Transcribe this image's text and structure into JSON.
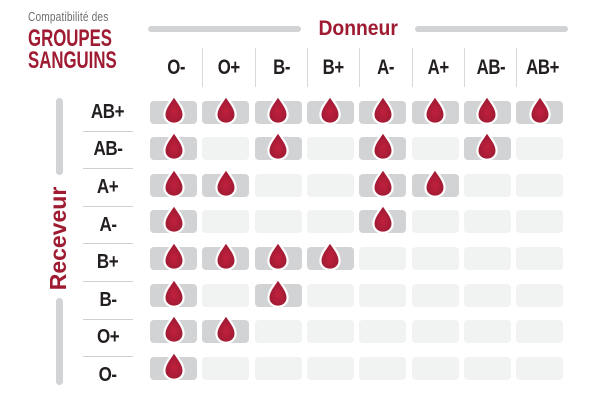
{
  "brand": {
    "pretitle": "Compatibilité des",
    "title_line1": "GROUPES",
    "title_line2": "SANGUINS"
  },
  "chart_data": {
    "type": "table",
    "title": "Compatibilité des groupes sanguins",
    "columns_label": "Donneur",
    "rows_label": "Receveur",
    "columns": [
      "O-",
      "O+",
      "B-",
      "B+",
      "A-",
      "A+",
      "AB-",
      "AB+"
    ],
    "rows": [
      "AB+",
      "AB-",
      "A+",
      "A-",
      "B+",
      "B-",
      "O+",
      "O-"
    ],
    "cell_marker": "blood-drop = compatible, empty = incompatible",
    "matrix": [
      [
        1,
        1,
        1,
        1,
        1,
        1,
        1,
        1
      ],
      [
        1,
        0,
        1,
        0,
        1,
        0,
        1,
        0
      ],
      [
        1,
        1,
        0,
        0,
        1,
        1,
        0,
        0
      ],
      [
        1,
        0,
        0,
        0,
        1,
        0,
        0,
        0
      ],
      [
        1,
        1,
        1,
        1,
        0,
        0,
        0,
        0
      ],
      [
        1,
        0,
        1,
        0,
        0,
        0,
        0,
        0
      ],
      [
        1,
        1,
        0,
        0,
        0,
        0,
        0,
        0
      ],
      [
        1,
        0,
        0,
        0,
        0,
        0,
        0,
        0
      ]
    ]
  },
  "icon": {
    "compatible_marker": "blood-drop-icon"
  },
  "colors": {
    "accent_red": "#9E1B32",
    "drop_center": "#C1203C",
    "drop_edge": "#96172E",
    "drop_stroke": "#FFFFFF",
    "cell_filled_gray": "#D1D3D4",
    "cell_empty_gray": "#F1F2F2",
    "axis_bar_gray": "#D1D3D4",
    "text_dark": "#231F20",
    "pretitle_gray": "#6D6E71",
    "background": "#FFFFFF"
  }
}
